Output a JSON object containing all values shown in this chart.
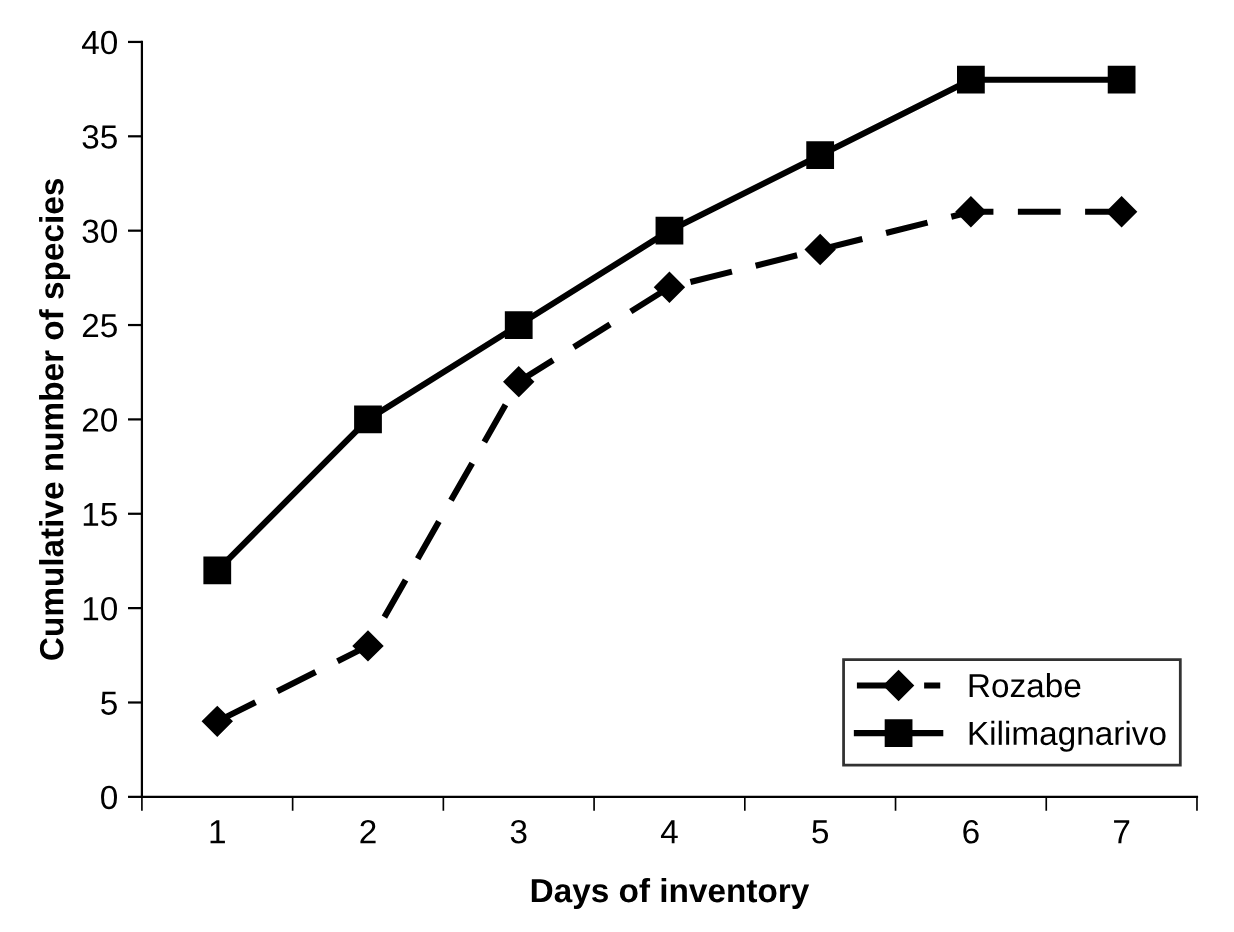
{
  "chart_data": {
    "type": "line",
    "xlabel": "Days of inventory",
    "ylabel": "Cumulative number of species",
    "categories": [
      "1",
      "2",
      "3",
      "4",
      "5",
      "6",
      "7"
    ],
    "series": [
      {
        "name": "Rozabe",
        "color": "#000000",
        "marker": "diamond",
        "line_style": "dashed",
        "values": [
          4,
          8,
          22,
          27,
          29,
          31,
          31
        ]
      },
      {
        "name": "Kilimagnarivo",
        "color": "#000000",
        "marker": "square",
        "line_style": "solid",
        "values": [
          12,
          20,
          25,
          30,
          34,
          38,
          38
        ]
      }
    ],
    "ylim": [
      0,
      40
    ],
    "yticks": [
      0,
      5,
      10,
      15,
      20,
      25,
      30,
      35,
      40
    ],
    "grid": false,
    "legend": "bottom right"
  }
}
